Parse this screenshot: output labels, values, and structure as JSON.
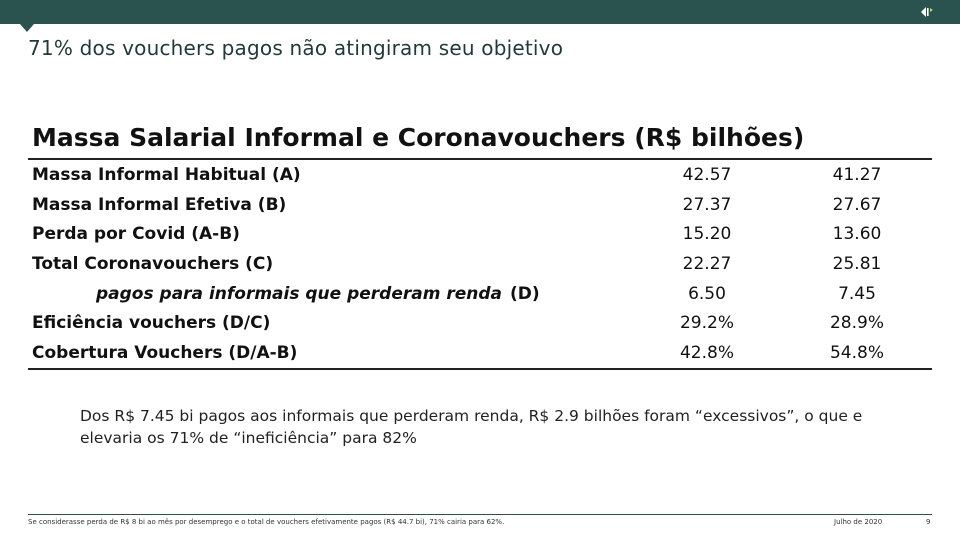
{
  "header": {
    "bar_color": "#2a5350",
    "nav_icon": "slide-nav-icon"
  },
  "slide": {
    "title": "71% dos vouchers pagos não atingiram seu objetivo"
  },
  "table": {
    "heading": "Massa Salarial Informal e Coronavouchers (R$ bilhões)",
    "rows": [
      {
        "label": "Massa Informal Habitual (A)",
        "v1": "42.57",
        "v2": "41.27"
      },
      {
        "label": "Massa Informal Efetiva (B)",
        "v1": "27.37",
        "v2": "27.67"
      },
      {
        "label": "Perda por Covid (A-B)",
        "v1": "15.20",
        "v2": "13.60"
      },
      {
        "label": "Total Coronavouchers (C)",
        "v1": "22.27",
        "v2": "25.81"
      },
      {
        "label": "pagos para informais que perderam renda",
        "tag": "(D)",
        "v1": "6.50",
        "v2": "7.45"
      },
      {
        "label": "Eficiência vouchers (D/C)",
        "v1": "29.2%",
        "v2": "28.9%"
      },
      {
        "label": "Cobertura Vouchers (D/A-B)",
        "v1": "42.8%",
        "v2": "54.8%"
      }
    ]
  },
  "note": "Dos R$ 7.45 bi pagos aos informais que perderam renda, R$ 2.9 bilhões foram “excessivos”, o que e elevaria os 71% de “ineficiência” para 82%",
  "footer": {
    "footnote": "Se considerasse perda de R$ 8 bi ao mês por desemprego e o total de vouchers efetivamente pagos (R$ 44.7 bi), 71% cairia para 62%.",
    "date": "Julho de 2020",
    "page": "9"
  }
}
